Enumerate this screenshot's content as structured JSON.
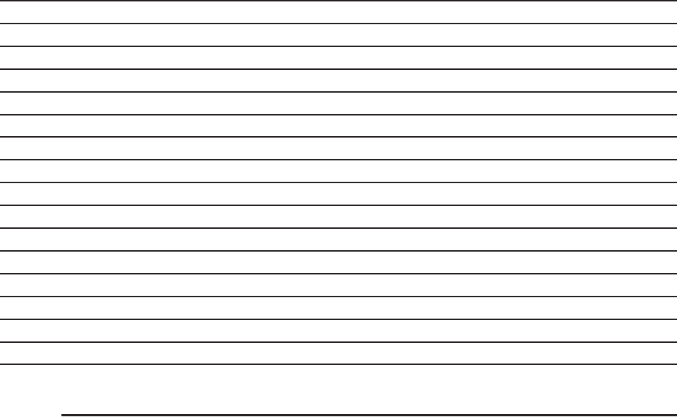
{
  "page": {
    "line_color": "#231f20",
    "ruled_line_count": 17
  }
}
